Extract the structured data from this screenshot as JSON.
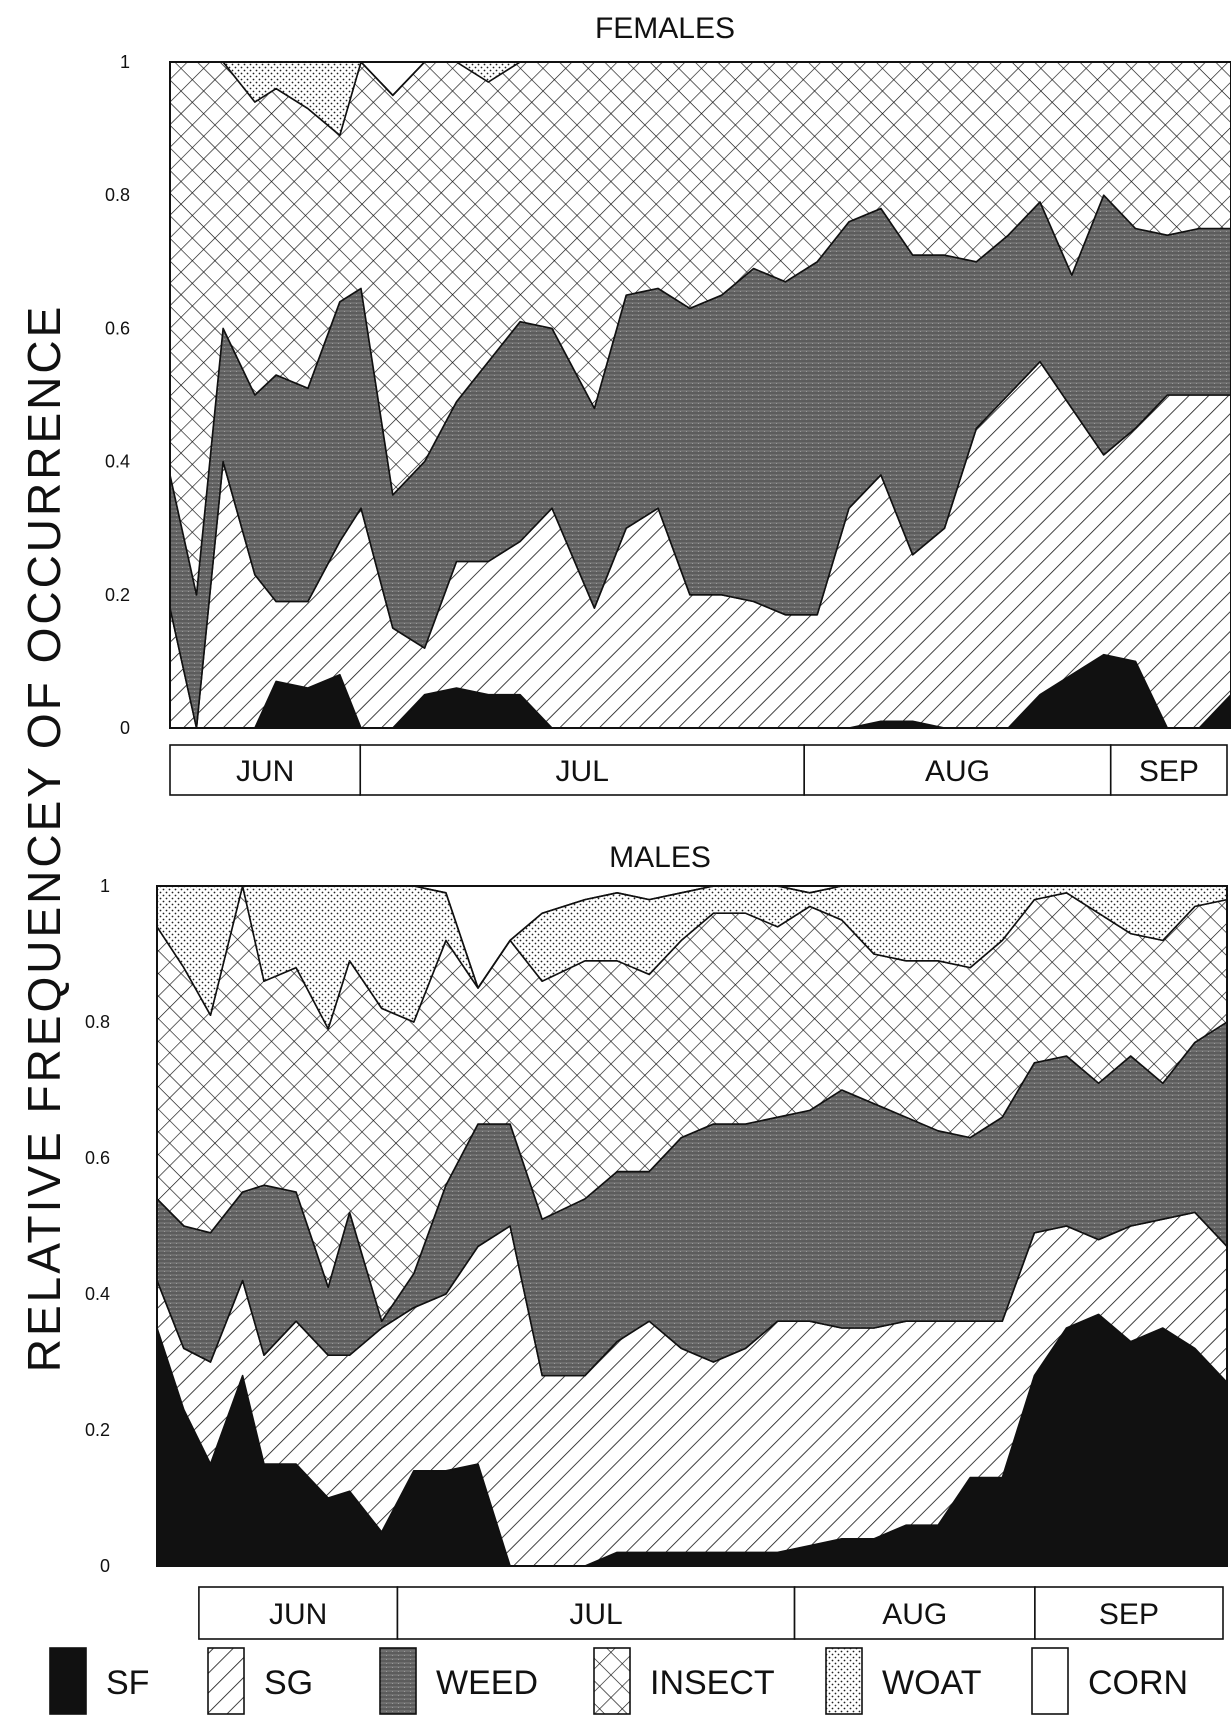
{
  "ylabel": "RELATIVE FREQUENCEY OF OCCURRENCE",
  "colors": {
    "SF": "#111111",
    "WEED": "#6a6a6a",
    "line": "#111111"
  },
  "legend": [
    {
      "key": "SF",
      "label": "SF",
      "pattern": "solid-black"
    },
    {
      "key": "SG",
      "label": "SG",
      "pattern": "diagonal-hatch"
    },
    {
      "key": "WEED",
      "label": "WEED",
      "pattern": "dark-gray-stipple"
    },
    {
      "key": "INSECT",
      "label": "INSECT",
      "pattern": "crosshatch"
    },
    {
      "key": "WOAT",
      "label": "WOAT",
      "pattern": "dots"
    },
    {
      "key": "CORN",
      "label": "CORN",
      "pattern": "blank"
    }
  ],
  "chart_data": [
    {
      "type": "area",
      "stacked": true,
      "title": "FEMALES",
      "ylim": [
        0,
        1
      ],
      "yticks": [
        "0",
        "0.2",
        "0.4",
        "0.6",
        "0.8",
        "1"
      ],
      "xlim": [
        0,
        100
      ],
      "months": [
        {
          "label": "JUN",
          "start": 0,
          "end": 18
        },
        {
          "label": "JUL",
          "start": 18,
          "end": 60
        },
        {
          "label": "AUG",
          "start": 60,
          "end": 89
        },
        {
          "label": "SEP",
          "start": 89,
          "end": 100
        }
      ],
      "x": [
        0,
        2.5,
        5,
        8,
        10,
        13,
        16,
        18,
        21,
        24,
        27,
        30,
        33,
        36,
        40,
        43,
        46,
        49,
        52,
        55,
        58,
        61,
        64,
        67,
        70,
        73,
        76,
        79,
        82,
        85,
        88,
        91,
        94,
        97,
        100
      ],
      "series": [
        {
          "name": "SF",
          "values": [
            0,
            0,
            0,
            0,
            0.07,
            0.06,
            0.08,
            0,
            0,
            0.05,
            0.06,
            0.05,
            0.05,
            0,
            0,
            0,
            0,
            0,
            0,
            0,
            0,
            0,
            0,
            0.01,
            0.01,
            0,
            0,
            0,
            0.05,
            0.08,
            0.11,
            0.1,
            0,
            0,
            0.05
          ]
        },
        {
          "name": "SG",
          "values": [
            0.18,
            0,
            0.4,
            0.23,
            0.12,
            0.13,
            0.2,
            0.33,
            0.15,
            0.07,
            0.19,
            0.2,
            0.23,
            0.33,
            0.18,
            0.3,
            0.33,
            0.2,
            0.2,
            0.19,
            0.17,
            0.17,
            0.33,
            0.37,
            0.25,
            0.3,
            0.45,
            0.5,
            0.5,
            0.4,
            0.3,
            0.35,
            0.5,
            0.5,
            0.45
          ]
        },
        {
          "name": "WEED",
          "values": [
            0.2,
            0.2,
            0.2,
            0.27,
            0.34,
            0.32,
            0.36,
            0.33,
            0.2,
            0.28,
            0.24,
            0.3,
            0.33,
            0.27,
            0.3,
            0.35,
            0.33,
            0.43,
            0.45,
            0.5,
            0.5,
            0.53,
            0.43,
            0.4,
            0.45,
            0.41,
            0.25,
            0.24,
            0.24,
            0.2,
            0.39,
            0.3,
            0.24,
            0.25,
            0.25
          ]
        },
        {
          "name": "INSECT",
          "values": [
            0.62,
            0.8,
            0.4,
            0.44,
            0.43,
            0.42,
            0.25,
            0.34,
            0.6,
            0.6,
            0.51,
            0.42,
            0.39,
            0.4,
            0.52,
            0.35,
            0.34,
            0.37,
            0.35,
            0.31,
            0.33,
            0.3,
            0.24,
            0.23,
            0.29,
            0.29,
            0.3,
            0.26,
            0.21,
            0.32,
            0.21,
            0.25,
            0.26,
            0.25,
            0.25
          ]
        },
        {
          "name": "WOAT",
          "values": [
            0,
            0,
            0,
            0.06,
            0.06,
            0.07,
            0.11,
            0,
            0,
            0,
            0,
            0.07,
            0.06,
            0,
            0,
            0,
            0.1,
            0,
            0,
            0,
            0,
            0,
            0,
            0,
            0,
            0,
            0,
            0,
            0,
            0,
            0,
            0,
            0,
            0,
            0
          ]
        },
        {
          "name": "CORN",
          "values": [
            0,
            0,
            0,
            0,
            0,
            0,
            0,
            0,
            0,
            0,
            0,
            0,
            0,
            0,
            0,
            0,
            0,
            0,
            0,
            0,
            0,
            0,
            0,
            0,
            0,
            0,
            0,
            0,
            0,
            0,
            0,
            0,
            0,
            0,
            0
          ]
        }
      ]
    },
    {
      "type": "area",
      "stacked": true,
      "title": "MALES",
      "ylim": [
        0,
        1
      ],
      "yticks": [
        "0",
        "0.2",
        "0.4",
        "0.6",
        "0.8",
        "1"
      ],
      "xlim": [
        0,
        100
      ],
      "months": [
        {
          "label": "JUN",
          "start": 2,
          "end": 21
        },
        {
          "label": "JUL",
          "start": 21,
          "end": 59
        },
        {
          "label": "AUG",
          "start": 59,
          "end": 82
        },
        {
          "label": "SEP",
          "start": 82,
          "end": 100
        }
      ],
      "x": [
        0,
        2.5,
        5,
        8,
        10,
        13,
        16,
        18,
        21,
        24,
        27,
        30,
        33,
        36,
        40,
        43,
        46,
        49,
        52,
        55,
        58,
        61,
        64,
        67,
        70,
        73,
        76,
        79,
        82,
        85,
        88,
        91,
        94,
        97,
        100
      ],
      "series": [
        {
          "name": "SF",
          "values": [
            0.35,
            0.23,
            0.15,
            0.28,
            0.15,
            0.15,
            0.1,
            0.11,
            0.05,
            0.14,
            0.14,
            0.15,
            0,
            0,
            0,
            0.02,
            0.02,
            0.02,
            0.02,
            0.02,
            0.02,
            0.03,
            0.04,
            0.04,
            0.06,
            0.06,
            0.13,
            0.13,
            0.28,
            0.35,
            0.37,
            0.33,
            0.35,
            0.32,
            0.27
          ]
        },
        {
          "name": "SG",
          "values": [
            0.07,
            0.09,
            0.15,
            0.14,
            0.16,
            0.21,
            0.21,
            0.2,
            0.3,
            0.24,
            0.26,
            0.32,
            0.5,
            0.28,
            0.28,
            0.31,
            0.34,
            0.3,
            0.28,
            0.3,
            0.34,
            0.33,
            0.31,
            0.31,
            0.3,
            0.3,
            0.23,
            0.23,
            0.21,
            0.15,
            0.11,
            0.17,
            0.16,
            0.2,
            0.2
          ]
        },
        {
          "name": "WEED",
          "values": [
            0.12,
            0.18,
            0.19,
            0.13,
            0.25,
            0.19,
            0.1,
            0.21,
            0.01,
            0.05,
            0.16,
            0.18,
            0.15,
            0.23,
            0.26,
            0.25,
            0.22,
            0.31,
            0.35,
            0.33,
            0.3,
            0.31,
            0.35,
            0.33,
            0.3,
            0.28,
            0.27,
            0.3,
            0.25,
            0.25,
            0.23,
            0.25,
            0.2,
            0.25,
            0.33
          ]
        },
        {
          "name": "INSECT",
          "values": [
            0.4,
            0.38,
            0.32,
            0.45,
            0.3,
            0.33,
            0.38,
            0.37,
            0.46,
            0.37,
            0.36,
            0.2,
            0.27,
            0.35,
            0.35,
            0.31,
            0.29,
            0.29,
            0.31,
            0.31,
            0.28,
            0.3,
            0.25,
            0.22,
            0.23,
            0.25,
            0.25,
            0.26,
            0.24,
            0.24,
            0.25,
            0.18,
            0.21,
            0.2,
            0.18
          ]
        },
        {
          "name": "WOAT",
          "values": [
            0.06,
            0.12,
            0.19,
            0,
            0.14,
            0.12,
            0.21,
            0.11,
            0.18,
            0.2,
            0.07,
            0,
            0,
            0.1,
            0.09,
            0.1,
            0.11,
            0.07,
            0.04,
            0.04,
            0.06,
            0.02,
            0.05,
            0.1,
            0.11,
            0.16,
            0.12,
            0.09,
            0.02,
            0.01,
            0.04,
            0.07,
            0.08,
            0.03,
            0.02
          ]
        },
        {
          "name": "CORN",
          "values": [
            0,
            0,
            0,
            0,
            0,
            0,
            0,
            0,
            0,
            0,
            0,
            0,
            0,
            0,
            0,
            0,
            0,
            0,
            0,
            0,
            0,
            0,
            0,
            0,
            0,
            0,
            0,
            0,
            0,
            0,
            0,
            0,
            0,
            0,
            0
          ]
        }
      ]
    }
  ]
}
